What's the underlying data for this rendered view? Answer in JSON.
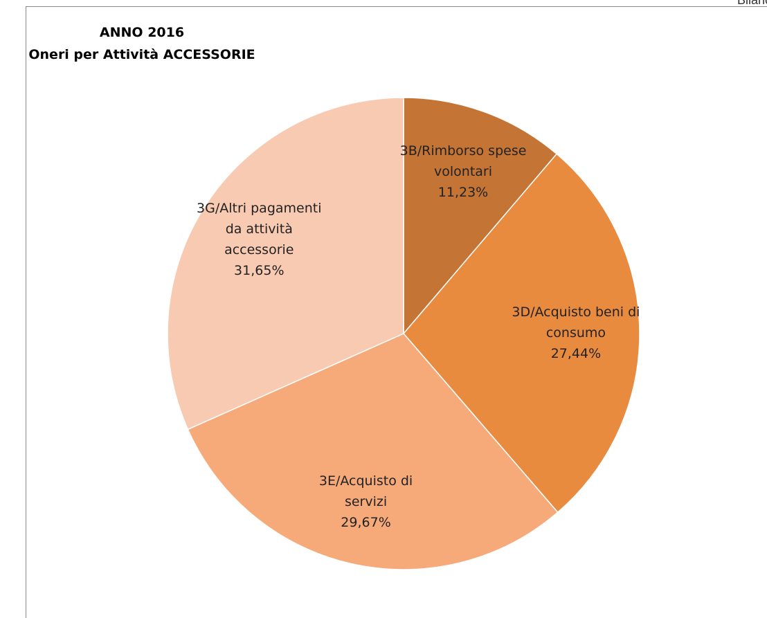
{
  "header": "Bilanc",
  "chart_data": {
    "type": "pie",
    "title": [
      "ANNO 2016",
      "Oneri per Attività ACCESSORIE"
    ],
    "categories": [
      "3B/Rimborso spese volontari",
      "3D/Acquisto beni di consumo",
      "3E/Acquisto di servizi",
      "3G/Altri pagamenti da attività accessorie"
    ],
    "values": [
      11.23,
      27.44,
      29.67,
      31.65
    ],
    "value_labels": [
      "11,23%",
      "27,44%",
      "29,67%",
      "31,65%"
    ],
    "colors": [
      "#C47434",
      "#E98B3F",
      "#F6AA79",
      "#F8CAB2"
    ]
  }
}
